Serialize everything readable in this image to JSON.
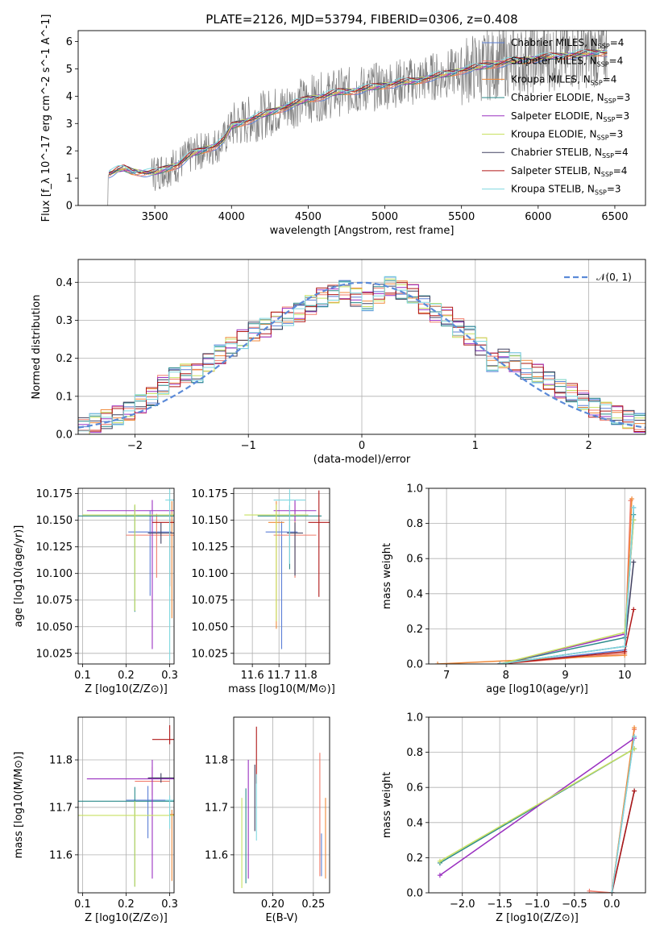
{
  "figure_title": "PLATE=2126, MJD=53794, FIBERID=0306, z=0.408",
  "colors": {
    "Chabrier MILES": "#5b7fd6",
    "Salpeter MILES": "#f07a6a",
    "Kroupa MILES": "#f08a3a",
    "Chabrier ELODIE": "#2a8a8a",
    "Salpeter ELODIE": "#9a30c0",
    "Kroupa ELODIE": "#c8e060",
    "Chabrier STELIB": "#404060",
    "Salpeter STELIB": "#b01818",
    "Kroupa STELIB": "#80d8e0",
    "observed": "#808080",
    "normal": "#5b8ad8"
  },
  "chart_data": [
    {
      "id": "spectrum",
      "type": "line",
      "xlabel": "wavelength [Angstrom, rest frame]",
      "ylabel": "Flux [f_λ 10^-17 erg cm^-2 s^-1 A^-1]",
      "xlim": [
        3000,
        6700
      ],
      "ylim": [
        0,
        6.4
      ],
      "xticks": [
        3500,
        4000,
        4500,
        5000,
        5500,
        6000,
        6500
      ],
      "yticks": [
        0,
        1,
        2,
        3,
        4,
        5,
        6
      ],
      "legend_position": "right",
      "legend": [
        {
          "name": "Chabrier MILES",
          "nssp": "4"
        },
        {
          "name": "Salpeter MILES",
          "nssp": "4"
        },
        {
          "name": "Kroupa MILES",
          "nssp": "4"
        },
        {
          "name": "Chabrier ELODIE",
          "nssp": "3"
        },
        {
          "name": "Salpeter ELODIE",
          "nssp": "3"
        },
        {
          "name": "Kroupa ELODIE",
          "nssp": "3"
        },
        {
          "name": "Chabrier STELIB",
          "nssp": "4"
        },
        {
          "name": "Salpeter STELIB",
          "nssp": "4"
        },
        {
          "name": "Kroupa STELIB",
          "nssp": "3"
        }
      ],
      "continuum": {
        "x": [
          3190,
          3220,
          3260,
          3300,
          3350,
          3400,
          3450,
          3500,
          3550,
          3600,
          3650,
          3700,
          3750,
          3800,
          3850,
          3900,
          3950,
          4000,
          4100,
          4200,
          4300,
          4400,
          4500,
          4600,
          4700,
          4800,
          4900,
          5000,
          5100,
          5200,
          5300,
          5400,
          5500,
          5600,
          5700,
          5800,
          5900,
          6000,
          6100,
          6200,
          6300,
          6400,
          6450
        ],
        "y": [
          1.15,
          1.2,
          1.3,
          1.35,
          1.25,
          1.22,
          1.2,
          1.2,
          1.3,
          1.4,
          1.5,
          1.7,
          1.9,
          2.0,
          2.1,
          2.2,
          2.4,
          2.9,
          3.1,
          3.3,
          3.5,
          3.7,
          3.9,
          4.0,
          4.15,
          4.2,
          4.3,
          4.4,
          4.5,
          4.55,
          4.7,
          4.8,
          4.95,
          5.05,
          5.15,
          5.25,
          5.3,
          5.4,
          5.45,
          5.5,
          5.55,
          5.6,
          5.6
        ]
      },
      "observed_range": [
        3190,
        6450
      ]
    },
    {
      "id": "residuals",
      "type": "area",
      "xlabel": "(data-model)/error",
      "ylabel": "Normed distribution",
      "xlim": [
        -2.5,
        2.5
      ],
      "ylim": [
        0,
        0.46
      ],
      "xticks": [
        -2,
        -1,
        0,
        1,
        2
      ],
      "yticks": [
        0.0,
        0.1,
        0.2,
        0.3,
        0.4
      ],
      "grid": true,
      "legend_position": "top-right",
      "gaussian_label": "𝒩(0, 1)",
      "bin_width": 0.1,
      "x": [
        -2.45,
        -2.35,
        -2.25,
        -2.15,
        -2.05,
        -1.95,
        -1.85,
        -1.75,
        -1.65,
        -1.55,
        -1.45,
        -1.35,
        -1.25,
        -1.15,
        -1.05,
        -0.95,
        -0.85,
        -0.75,
        -0.65,
        -0.55,
        -0.45,
        -0.35,
        -0.25,
        -0.15,
        -0.05,
        0.05,
        0.15,
        0.25,
        0.35,
        0.45,
        0.55,
        0.65,
        0.75,
        0.85,
        0.95,
        1.05,
        1.15,
        1.25,
        1.35,
        1.45,
        1.55,
        1.65,
        1.75,
        1.85,
        1.95,
        2.05,
        2.15,
        2.25,
        2.35,
        2.45
      ],
      "mean_hist": [
        0.02,
        0.03,
        0.04,
        0.05,
        0.06,
        0.08,
        0.1,
        0.13,
        0.15,
        0.16,
        0.16,
        0.19,
        0.21,
        0.23,
        0.25,
        0.27,
        0.28,
        0.3,
        0.31,
        0.32,
        0.34,
        0.36,
        0.37,
        0.38,
        0.36,
        0.35,
        0.37,
        0.39,
        0.38,
        0.37,
        0.34,
        0.32,
        0.31,
        0.28,
        0.26,
        0.23,
        0.19,
        0.2,
        0.19,
        0.17,
        0.16,
        0.14,
        0.12,
        0.11,
        0.09,
        0.07,
        0.06,
        0.05,
        0.04,
        0.03
      ]
    },
    {
      "id": "age-vs-Z",
      "type": "scatter",
      "xlabel": "Z [log10(Z/Z⊙)]",
      "ylabel": "age [log10(age/yr)]",
      "xlim": [
        0.09,
        0.31
      ],
      "ylim": [
        10.015,
        10.18
      ],
      "xticks": [
        0.1,
        0.2,
        0.3
      ],
      "yticks": [
        10.025,
        10.05,
        10.075,
        10.1,
        10.125,
        10.15,
        10.175
      ],
      "grid": true,
      "points": [
        {
          "model": "Chabrier MILES",
          "x": 0.255,
          "y": 10.139,
          "xerr": 0.05,
          "yerr": [
            0.06,
            0.02
          ]
        },
        {
          "model": "Salpeter MILES",
          "x": 0.27,
          "y": 10.136,
          "xerr": 0.07,
          "yerr": [
            0.04,
            0.02
          ]
        },
        {
          "model": "Kroupa MILES",
          "x": 0.305,
          "y": 10.148,
          "xerr": 0.005,
          "yerr": [
            0.09,
            0.02
          ]
        },
        {
          "model": "Chabrier ELODIE",
          "x": 0.22,
          "y": 10.154,
          "xerr": 0.13,
          "yerr": [
            0.09,
            0.01
          ]
        },
        {
          "model": "Salpeter ELODIE",
          "x": 0.26,
          "y": 10.159,
          "xerr": 0.15,
          "yerr": [
            0.13,
            0.01
          ]
        },
        {
          "model": "Kroupa ELODIE",
          "x": 0.22,
          "y": 10.155,
          "xerr": 0.12,
          "yerr": [
            0.09,
            0.01
          ]
        },
        {
          "model": "Chabrier STELIB",
          "x": 0.28,
          "y": 10.138,
          "xerr": 0.03,
          "yerr": [
            0.01,
            0.01
          ]
        },
        {
          "model": "Salpeter STELIB",
          "x": 0.3,
          "y": 10.148,
          "xerr": 0.04,
          "yerr": [
            0.06,
            0.01
          ]
        },
        {
          "model": "Kroupa STELIB",
          "x": 0.3,
          "y": 10.169,
          "xerr": 0.01,
          "yerr": [
            0.15,
            0.01
          ]
        }
      ]
    },
    {
      "id": "age-vs-mass",
      "type": "scatter",
      "xlabel": "mass [log10(M/M⊙)]",
      "ylabel": "",
      "xlim": [
        11.53,
        11.89
      ],
      "ylim": [
        10.015,
        10.18
      ],
      "xticks": [
        11.6,
        11.7,
        11.8
      ],
      "yticks": [
        10.025,
        10.05,
        10.075,
        10.1,
        10.125,
        10.15,
        10.175
      ],
      "grid": true,
      "points": [
        {
          "model": "Chabrier MILES",
          "x": 11.71,
          "y": 10.139,
          "xerr": 0.06,
          "yerr": [
            0.11,
            0.01
          ]
        },
        {
          "model": "Salpeter MILES",
          "x": 11.76,
          "y": 10.136,
          "xerr": 0.08,
          "yerr": [
            0.04,
            0.03
          ]
        },
        {
          "model": "Kroupa MILES",
          "x": 11.69,
          "y": 10.148,
          "xerr": 0.03,
          "yerr": [
            0.1,
            0.02
          ]
        },
        {
          "model": "Chabrier ELODIE",
          "x": 11.74,
          "y": 10.154,
          "xerr": 0.12,
          "yerr": [
            0.05,
            0.01
          ]
        },
        {
          "model": "Salpeter ELODIE",
          "x": 11.76,
          "y": 10.159,
          "xerr": 0.08,
          "yerr": [
            0.01,
            0.01
          ]
        },
        {
          "model": "Kroupa ELODIE",
          "x": 11.69,
          "y": 10.155,
          "xerr": 0.12,
          "yerr": [
            0.1,
            0.01
          ]
        },
        {
          "model": "Chabrier STELIB",
          "x": 11.76,
          "y": 10.138,
          "xerr": 0.03,
          "yerr": [
            0.04,
            0.01
          ]
        },
        {
          "model": "Salpeter STELIB",
          "x": 11.85,
          "y": 10.148,
          "xerr": 0.04,
          "yerr": [
            0.07,
            0.03
          ]
        },
        {
          "model": "Kroupa STELIB",
          "x": 11.74,
          "y": 10.169,
          "xerr": 0.06,
          "yerr": [
            0.06,
            0.01
          ]
        }
      ]
    },
    {
      "id": "weight-vs-age",
      "type": "line",
      "xlabel": "age [log10(age/yr)]",
      "ylabel": "mass weight",
      "xlim": [
        6.7,
        10.35
      ],
      "ylim": [
        0,
        1.0
      ],
      "xticks": [
        7,
        8,
        9,
        10
      ],
      "yticks": [
        0.0,
        0.2,
        0.4,
        0.6,
        0.8,
        1.0
      ],
      "grid": true,
      "series": [
        {
          "model": "Chabrier MILES",
          "x": [
            7.9,
            10.0,
            10.15
          ],
          "y": [
            0.0,
            0.08,
            0.89
          ]
        },
        {
          "model": "Salpeter MILES",
          "x": [
            7.9,
            10.0,
            10.1
          ],
          "y": [
            0.0,
            0.06,
            0.93
          ]
        },
        {
          "model": "Kroupa MILES",
          "x": [
            6.85,
            10.0,
            10.12
          ],
          "y": [
            0.0,
            0.05,
            0.94
          ]
        },
        {
          "model": "Chabrier ELODIE",
          "x": [
            7.9,
            10.0,
            10.15
          ],
          "y": [
            0.0,
            0.15,
            0.85
          ]
        },
        {
          "model": "Salpeter ELODIE",
          "x": [
            7.9,
            10.0,
            10.15
          ],
          "y": [
            0.0,
            0.17,
            0.82
          ]
        },
        {
          "model": "Kroupa ELODIE",
          "x": [
            7.9,
            10.0,
            10.15
          ],
          "y": [
            0.0,
            0.18,
            0.82
          ]
        },
        {
          "model": "Chabrier STELIB",
          "x": [
            7.9,
            10.0,
            10.15
          ],
          "y": [
            0.0,
            0.1,
            0.58
          ]
        },
        {
          "model": "Salpeter STELIB",
          "x": [
            7.9,
            10.0,
            10.15
          ],
          "y": [
            0.0,
            0.07,
            0.31
          ]
        },
        {
          "model": "Kroupa STELIB",
          "x": [
            7.9,
            10.0,
            10.15
          ],
          "y": [
            0.0,
            0.1,
            0.89
          ]
        }
      ]
    },
    {
      "id": "mass-vs-Z",
      "type": "scatter",
      "xlabel": "Z [log10(Z/Z⊙)]",
      "ylabel": "mass [log10(M/M⊙)]",
      "xlim": [
        0.09,
        0.31
      ],
      "ylim": [
        11.52,
        11.89
      ],
      "xticks": [
        0.1,
        0.2,
        0.3
      ],
      "yticks": [
        11.6,
        11.7,
        11.8
      ],
      "grid": true,
      "points": [
        {
          "model": "Chabrier MILES",
          "x": 0.25,
          "y": 11.715,
          "xerr": 0.05,
          "yerr": [
            0.08,
            0.03
          ]
        },
        {
          "model": "Salpeter MILES",
          "x": 0.26,
          "y": 11.755,
          "xerr": 0.04,
          "yerr": [
            0.03,
            0.03
          ]
        },
        {
          "model": "Kroupa MILES",
          "x": 0.305,
          "y": 11.685,
          "xerr": 0.005,
          "yerr": [
            0.14,
            0.01
          ]
        },
        {
          "model": "Chabrier ELODIE",
          "x": 0.22,
          "y": 11.713,
          "xerr": 0.13,
          "yerr": [
            0.18,
            0.03
          ]
        },
        {
          "model": "Salpeter ELODIE",
          "x": 0.26,
          "y": 11.76,
          "xerr": 0.15,
          "yerr": [
            0.21,
            0.04
          ]
        },
        {
          "model": "Kroupa ELODIE",
          "x": 0.22,
          "y": 11.683,
          "xerr": 0.13,
          "yerr": [
            0.15,
            0.03
          ]
        },
        {
          "model": "Chabrier STELIB",
          "x": 0.28,
          "y": 11.762,
          "xerr": 0.03,
          "yerr": [
            0.01,
            0.01
          ]
        },
        {
          "model": "Salpeter STELIB",
          "x": 0.3,
          "y": 11.843,
          "xerr": 0.04,
          "yerr": [
            0.01,
            0.03
          ]
        },
        {
          "model": "Kroupa STELIB",
          "x": 0.3,
          "y": 11.715,
          "xerr": 0.01,
          "yerr": [
            0.06,
            0.01
          ]
        }
      ]
    },
    {
      "id": "mass-vs-EBV",
      "type": "scatter",
      "xlabel": "E(B-V)",
      "ylabel": "",
      "xlim": [
        0.152,
        0.27
      ],
      "ylim": [
        11.52,
        11.89
      ],
      "xticks": [
        0.2,
        0.25
      ],
      "yticks": [
        11.6,
        11.7,
        11.8
      ],
      "grid": true,
      "points": [
        {
          "model": "Chabrier MILES",
          "x": 0.26,
          "y": 11.615,
          "xerr": 0.0,
          "yerr": [
            0.06,
            0.03
          ]
        },
        {
          "model": "Salpeter MILES",
          "x": 0.258,
          "y": 11.755,
          "xerr": 0.0,
          "yerr": [
            0.2,
            0.06
          ]
        },
        {
          "model": "Kroupa MILES",
          "x": 0.265,
          "y": 11.62,
          "xerr": 0.0,
          "yerr": [
            0.07,
            0.1
          ]
        },
        {
          "model": "Chabrier ELODIE",
          "x": 0.167,
          "y": 11.69,
          "xerr": 0.0,
          "yerr": [
            0.15,
            0.05
          ]
        },
        {
          "model": "Salpeter ELODIE",
          "x": 0.17,
          "y": 11.73,
          "xerr": 0.0,
          "yerr": [
            0.18,
            0.07
          ]
        },
        {
          "model": "Kroupa ELODIE",
          "x": 0.162,
          "y": 11.62,
          "xerr": 0.0,
          "yerr": [
            0.09,
            0.1
          ]
        },
        {
          "model": "Chabrier STELIB",
          "x": 0.178,
          "y": 11.72,
          "xerr": 0.0,
          "yerr": [
            0.07,
            0.07
          ]
        },
        {
          "model": "Salpeter STELIB",
          "x": 0.18,
          "y": 11.8,
          "xerr": 0.0,
          "yerr": [
            0.05,
            0.07
          ]
        },
        {
          "model": "Kroupa STELIB",
          "x": 0.18,
          "y": 11.72,
          "xerr": 0.0,
          "yerr": [
            0.09,
            0.05
          ]
        }
      ]
    },
    {
      "id": "weight-vs-Z",
      "type": "line",
      "xlabel": "Z [log10(Z/Z⊙)]",
      "ylabel": "mass weight",
      "xlim": [
        -2.45,
        0.45
      ],
      "ylim": [
        0,
        1.0
      ],
      "xticks": [
        -2.0,
        -1.5,
        -1.0,
        -0.5,
        0.0
      ],
      "yticks": [
        0.0,
        0.2,
        0.4,
        0.6,
        0.8,
        1.0
      ],
      "grid": true,
      "series": [
        {
          "model": "Chabrier MILES",
          "x": [
            0.0,
            0.3
          ],
          "y": [
            0.0,
            0.89
          ]
        },
        {
          "model": "Salpeter MILES",
          "x": [
            -0.3,
            0.0,
            0.3
          ],
          "y": [
            0.01,
            0.0,
            0.93
          ]
        },
        {
          "model": "Kroupa MILES",
          "x": [
            0.0,
            0.3
          ],
          "y": [
            0.0,
            0.94
          ]
        },
        {
          "model": "Chabrier ELODIE",
          "x": [
            -2.3,
            0.3
          ],
          "y": [
            0.17,
            0.82
          ]
        },
        {
          "model": "Salpeter ELODIE",
          "x": [
            -2.3,
            0.3
          ],
          "y": [
            0.1,
            0.88
          ]
        },
        {
          "model": "Kroupa ELODIE",
          "x": [
            -2.3,
            0.3
          ],
          "y": [
            0.18,
            0.82
          ]
        },
        {
          "model": "Chabrier STELIB",
          "x": [
            0.0,
            0.3
          ],
          "y": [
            0.0,
            0.58
          ]
        },
        {
          "model": "Salpeter STELIB",
          "x": [
            0.0,
            0.3
          ],
          "y": [
            0.0,
            0.58
          ]
        },
        {
          "model": "Kroupa STELIB",
          "x": [
            0.0,
            0.3
          ],
          "y": [
            0.0,
            0.89
          ]
        }
      ]
    }
  ]
}
